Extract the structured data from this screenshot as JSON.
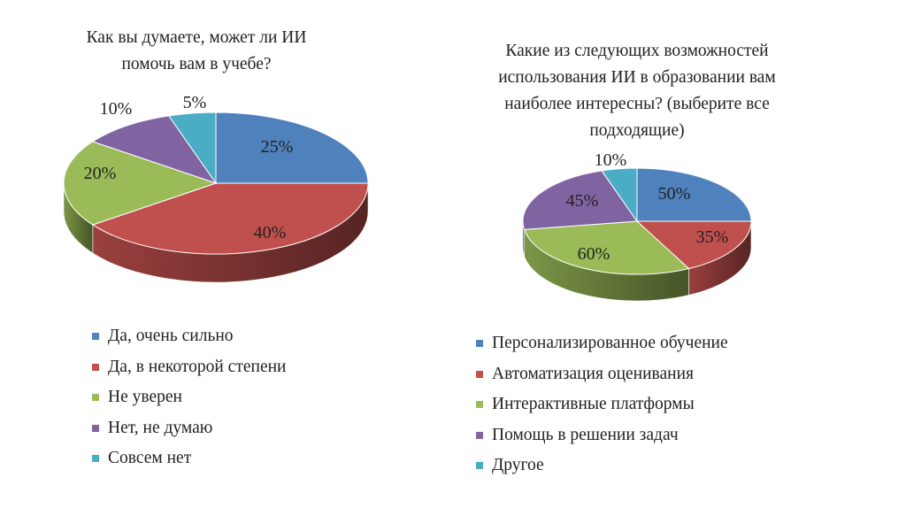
{
  "chart_data": [
    {
      "type": "pie",
      "title_lines": [
        "Как вы думаете, может ли ИИ",
        "помочь вам в учебе?"
      ],
      "categories": [
        "Да, очень сильно",
        "Да, в некоторой степени",
        "Не уверен",
        "Нет, не думаю",
        "Совсем нет"
      ],
      "values": [
        25,
        40,
        20,
        10,
        5
      ],
      "labels": [
        "25%",
        "40%",
        "20%",
        "10%",
        "5%"
      ],
      "colors": [
        "#4f81bd",
        "#c0504d",
        "#9bbb59",
        "#8064a2",
        "#4bacc6"
      ],
      "legend": "bottom"
    },
    {
      "type": "pie",
      "title_lines": [
        "Какие из следующих возможностей",
        "использования ИИ в образовании вам",
        "наиболее интересны? (выберите все",
        "подходящие)"
      ],
      "categories": [
        "Персонализированное обучение",
        "Автоматизация оценивания",
        "Интерактивные платформы",
        "Помощь в решении задач",
        "Другое"
      ],
      "values": [
        50,
        35,
        60,
        45,
        10
      ],
      "labels": [
        "50%",
        "35%",
        "60%",
        "45%",
        "10%"
      ],
      "colors": [
        "#4f81bd",
        "#c0504d",
        "#9bbb59",
        "#8064a2",
        "#4bacc6"
      ],
      "legend": "bottom"
    }
  ]
}
